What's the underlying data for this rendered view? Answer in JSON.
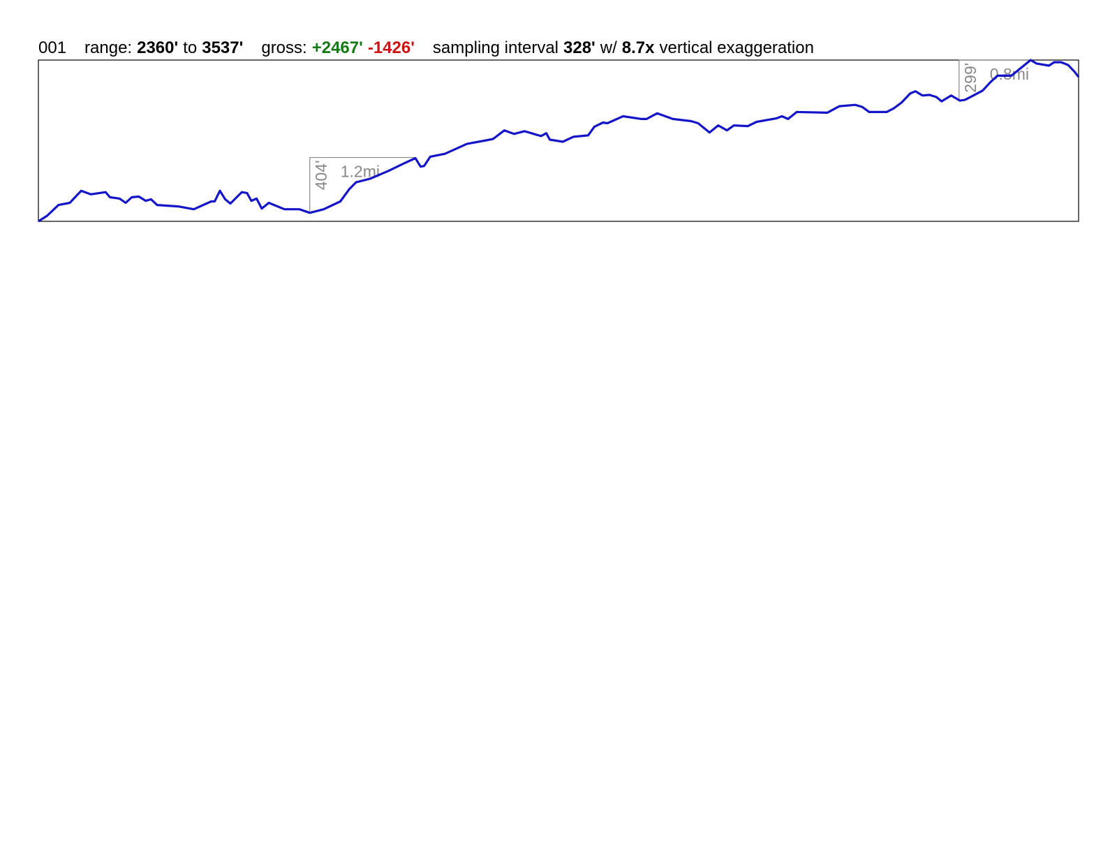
{
  "chart_data": {
    "type": "line",
    "header": [
      {
        "text": "001",
        "gap": true
      },
      {
        "text": "range:"
      },
      {
        "text": "2360'",
        "bold": true
      },
      {
        "text": "to"
      },
      {
        "text": "3537'",
        "bold": true,
        "gap": true
      },
      {
        "text": "gross:"
      },
      {
        "text": "+2467'",
        "bold": true,
        "color": "#157a15"
      },
      {
        "text": "-1426'",
        "bold": true,
        "color": "#cc1414",
        "gap": true
      },
      {
        "text": "sampling interval"
      },
      {
        "text": "328'",
        "bold": true
      },
      {
        "text": "w/"
      },
      {
        "text": "8.7x",
        "bold": true
      },
      {
        "text": "vertical exaggeration"
      }
    ],
    "x": [
      0,
      0.1,
      0.23,
      0.36,
      0.49,
      0.6,
      0.77,
      0.82,
      0.93,
      1.0,
      1.07,
      1.15,
      1.23,
      1.29,
      1.36,
      1.6,
      1.78,
      1.98,
      2.02,
      2.08,
      2.14,
      2.2,
      2.33,
      2.39,
      2.44,
      2.5,
      2.56,
      2.64,
      2.82,
      2.99,
      3.11,
      3.27,
      3.46,
      3.56,
      3.64,
      3.8,
      4.01,
      4.18,
      4.32,
      4.38,
      4.42,
      4.49,
      4.66,
      4.91,
      5.13,
      5.21,
      5.34,
      5.45,
      5.57,
      5.76,
      5.82,
      5.86,
      6.01,
      6.13,
      6.3,
      6.37,
      6.47,
      6.52,
      6.7,
      6.91,
      6.97,
      7.09,
      7.27,
      7.48,
      7.56,
      7.69,
      7.79,
      7.89,
      7.97,
      8.13,
      8.23,
      8.46,
      8.52,
      8.59,
      8.69,
      9.04,
      9.18,
      9.36,
      9.44,
      9.52,
      9.72,
      9.8,
      9.89,
      9.99,
      10.05,
      10.13,
      10.21,
      10.29,
      10.35,
      10.46,
      10.56,
      10.62,
      10.82,
      10.91,
      10.99,
      11.15,
      11.37,
      11.44,
      11.58,
      11.64,
      11.72,
      11.8,
      11.87,
      11.92
    ],
    "values": [
      2360,
      2401,
      2479,
      2495,
      2583,
      2557,
      2573,
      2536,
      2526,
      2495,
      2536,
      2541,
      2510,
      2521,
      2479,
      2469,
      2448,
      2505,
      2505,
      2583,
      2521,
      2490,
      2573,
      2567,
      2510,
      2526,
      2453,
      2495,
      2448,
      2448,
      2422,
      2448,
      2505,
      2593,
      2645,
      2671,
      2728,
      2780,
      2821,
      2759,
      2764,
      2832,
      2853,
      2925,
      2951,
      2961,
      3024,
      2998,
      3018,
      2982,
      3003,
      2956,
      2941,
      2977,
      2987,
      3050,
      3081,
      3076,
      3127,
      3107,
      3107,
      3148,
      3107,
      3091,
      3076,
      3008,
      3060,
      3024,
      3060,
      3055,
      3086,
      3112,
      3127,
      3107,
      3158,
      3153,
      3200,
      3210,
      3195,
      3158,
      3158,
      3184,
      3226,
      3293,
      3309,
      3278,
      3283,
      3267,
      3236,
      3278,
      3241,
      3247,
      3314,
      3376,
      3423,
      3423,
      3537,
      3511,
      3496,
      3521,
      3521,
      3501,
      3454,
      3413
    ],
    "color": "#1414c8",
    "xlim": [
      0,
      11.92
    ],
    "ylim": [
      2360,
      3537
    ],
    "climbs": [
      {
        "x": 3.11,
        "base": 2422,
        "rise": 404,
        "rise_label": "404'",
        "length": 1.2,
        "length_label": "1.2mi"
      },
      {
        "x": 10.55,
        "base": 3241,
        "rise": 299,
        "rise_label": "299'",
        "length": 0.8,
        "length_label": "0.8mi"
      }
    ]
  }
}
